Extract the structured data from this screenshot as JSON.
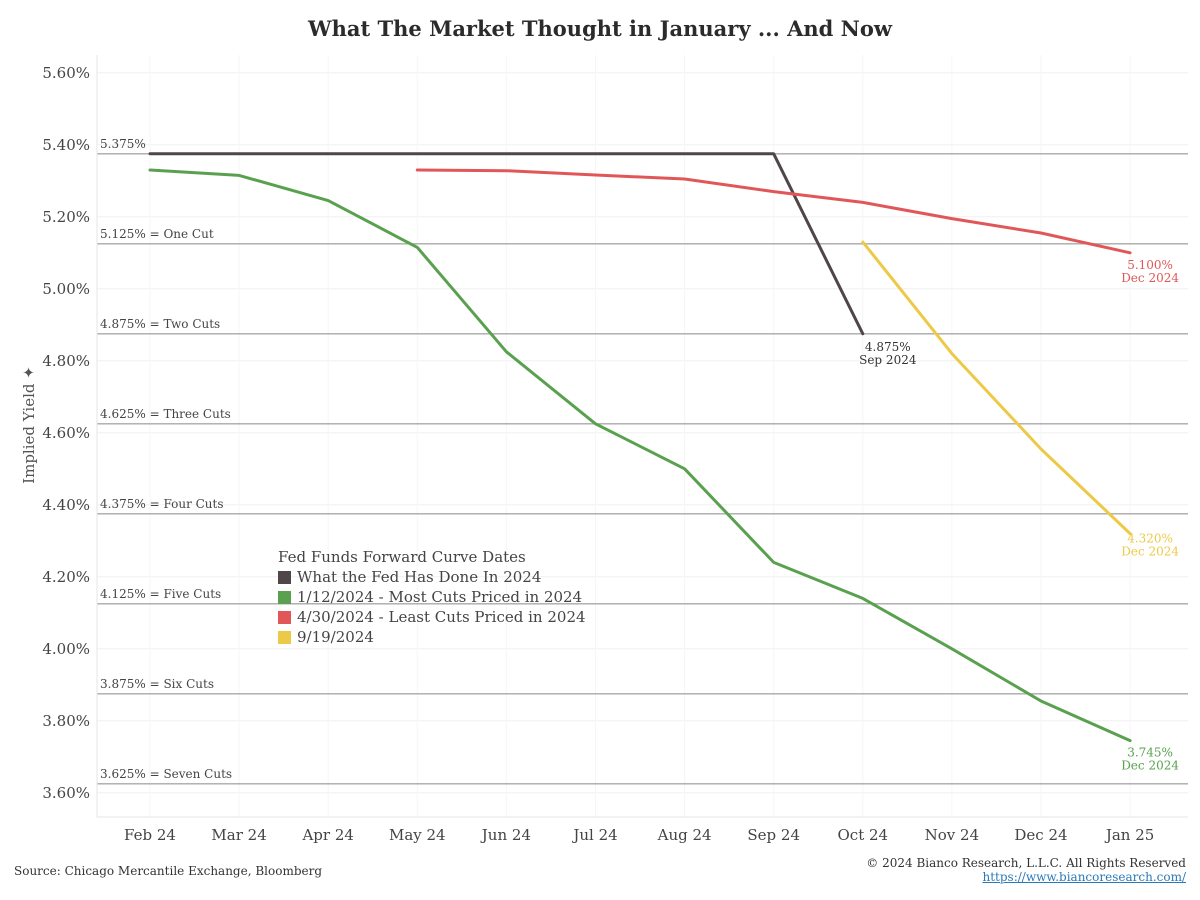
{
  "chart_data": {
    "type": "line",
    "title": "What The Market Thought in January ... And Now",
    "ylabel": "Implied Yield",
    "ylim": [
      3.55,
      5.65
    ],
    "y_ticks": [
      "5.60%",
      "5.40%",
      "5.20%",
      "5.00%",
      "4.80%",
      "4.60%",
      "4.40%",
      "4.20%",
      "4.00%",
      "3.80%",
      "3.60%"
    ],
    "y_tick_values": [
      5.6,
      5.4,
      5.2,
      5.0,
      4.8,
      4.6,
      4.4,
      4.2,
      4.0,
      3.8,
      3.6
    ],
    "categories": [
      "Feb 24",
      "Mar 24",
      "Apr 24",
      "May 24",
      "Jun 24",
      "Jul 24",
      "Aug 24",
      "Sep 24",
      "Oct 24",
      "Nov 24",
      "Dec 24",
      "Jan 25"
    ],
    "reference_lines": [
      {
        "value": 5.375,
        "label": "5.375%"
      },
      {
        "value": 5.125,
        "label": "5.125% = One Cut"
      },
      {
        "value": 4.875,
        "label": "4.875% = Two Cuts"
      },
      {
        "value": 4.625,
        "label": "4.625% = Three Cuts"
      },
      {
        "value": 4.375,
        "label": "4.375% = Four Cuts"
      },
      {
        "value": 4.125,
        "label": "4.125% = Five Cuts"
      },
      {
        "value": 3.875,
        "label": "3.875% = Six Cuts"
      },
      {
        "value": 3.625,
        "label": "3.625% = Seven Cuts"
      }
    ],
    "series": [
      {
        "name": "What the Fed Has Done In 2024",
        "color": "#4e4647",
        "points": [
          [
            0,
            5.375
          ],
          [
            7,
            5.375
          ],
          [
            8,
            4.875
          ]
        ],
        "end_label": [
          "4.875%",
          "Sep 2024"
        ]
      },
      {
        "name": "1/12/2024 - Most Cuts Priced in 2024",
        "color": "#59a14f",
        "points": [
          [
            0,
            5.33
          ],
          [
            1,
            5.315
          ],
          [
            2,
            5.245
          ],
          [
            3,
            5.115
          ],
          [
            4,
            4.825
          ],
          [
            5,
            4.625
          ],
          [
            6,
            4.5
          ],
          [
            7,
            4.24
          ],
          [
            8,
            4.14
          ],
          [
            9,
            4.0
          ],
          [
            10,
            3.855
          ],
          [
            11,
            3.745
          ]
        ],
        "end_label": [
          "3.745%",
          "Dec 2024"
        ]
      },
      {
        "name": "4/30/2024 - Least Cuts Priced in 2024",
        "color": "#e15759",
        "points": [
          [
            3,
            5.33
          ],
          [
            4,
            5.328
          ],
          [
            5,
            5.316
          ],
          [
            6,
            5.305
          ],
          [
            7,
            5.27
          ],
          [
            8,
            5.24
          ],
          [
            9,
            5.195
          ],
          [
            10,
            5.155
          ],
          [
            11,
            5.1
          ]
        ],
        "end_label": [
          "5.100%",
          "Dec 2024"
        ]
      },
      {
        "name": "9/19/2024",
        "color": "#edc948",
        "points": [
          [
            8,
            5.13
          ],
          [
            9,
            4.82
          ],
          [
            10,
            4.555
          ],
          [
            11,
            4.32
          ]
        ],
        "end_label": [
          "4.320%",
          "Dec 2024"
        ]
      }
    ],
    "legend_title": "Fed Funds Forward Curve Dates",
    "legend_placement": "lower-left",
    "grid": true
  },
  "footer": {
    "source": "Source: Chicago Mercantile Exchange, Bloomberg",
    "copyright": "© 2024 Bianco Research, L.L.C. All Rights Reserved",
    "url": "https://www.biancoresearch.com/"
  }
}
